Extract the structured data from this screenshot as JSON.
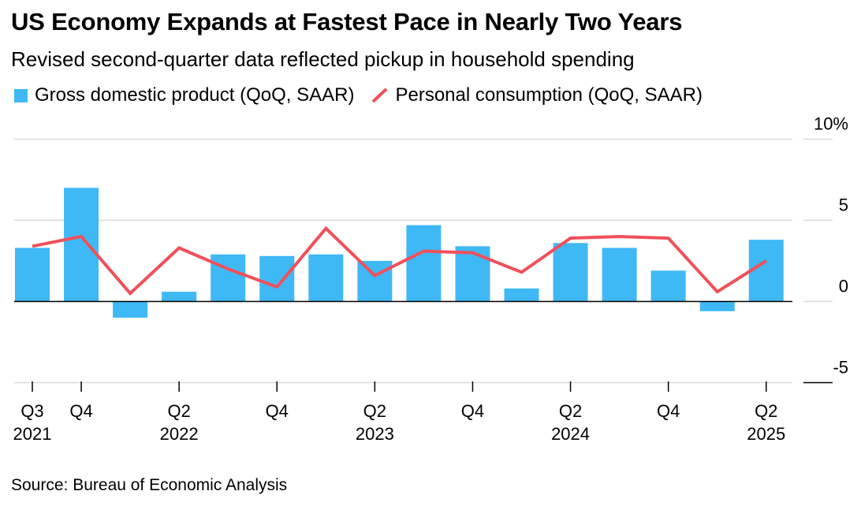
{
  "chart_data": {
    "type": "bar",
    "title": "US Economy Expands at Fastest Pace in Nearly Two Years",
    "subtitle": "Revised second-quarter data reflected pickup in household spending",
    "source": "Source: Bureau of Economic Analysis",
    "xlabel": "",
    "ylabel": "",
    "ylim": [
      -5,
      10
    ],
    "yticks": [
      {
        "value": 10,
        "label": "10%"
      },
      {
        "value": 5,
        "label": "5"
      },
      {
        "value": 0,
        "label": "0"
      },
      {
        "value": -5,
        "label": "-5"
      }
    ],
    "categories": [
      "Q3 2021",
      "Q4 2021",
      "Q1 2022",
      "Q2 2022",
      "Q3 2022",
      "Q4 2022",
      "Q1 2023",
      "Q2 2023",
      "Q3 2023",
      "Q4 2023",
      "Q1 2024",
      "Q2 2024",
      "Q3 2024",
      "Q4 2024",
      "Q1 2025",
      "Q2 2025"
    ],
    "xtick_labels": [
      {
        "index": 0,
        "line1": "Q3",
        "line2": "2021"
      },
      {
        "index": 1,
        "line1": "Q4",
        "line2": ""
      },
      {
        "index": 3,
        "line1": "Q2",
        "line2": "2022"
      },
      {
        "index": 5,
        "line1": "Q4",
        "line2": ""
      },
      {
        "index": 7,
        "line1": "Q2",
        "line2": "2023"
      },
      {
        "index": 9,
        "line1": "Q4",
        "line2": ""
      },
      {
        "index": 11,
        "line1": "Q2",
        "line2": "2024"
      },
      {
        "index": 13,
        "line1": "Q4",
        "line2": ""
      },
      {
        "index": 15,
        "line1": "Q2",
        "line2": "2025"
      }
    ],
    "series": [
      {
        "name": "Gross domestic product (QoQ, SAAR)",
        "type": "bar",
        "color": "#3FB8F6",
        "values": [
          3.3,
          7.0,
          -1.0,
          0.6,
          2.9,
          2.8,
          2.9,
          2.5,
          4.7,
          3.4,
          0.8,
          3.6,
          3.3,
          1.9,
          -0.6,
          3.8
        ]
      },
      {
        "name": "Personal consumption (QoQ, SAAR)",
        "type": "line",
        "color": "#F0505A",
        "values": [
          3.4,
          4.0,
          0.5,
          3.3,
          2.0,
          0.9,
          4.5,
          1.6,
          3.1,
          3.0,
          1.8,
          3.9,
          4.0,
          3.9,
          0.6,
          2.5
        ]
      }
    ]
  }
}
